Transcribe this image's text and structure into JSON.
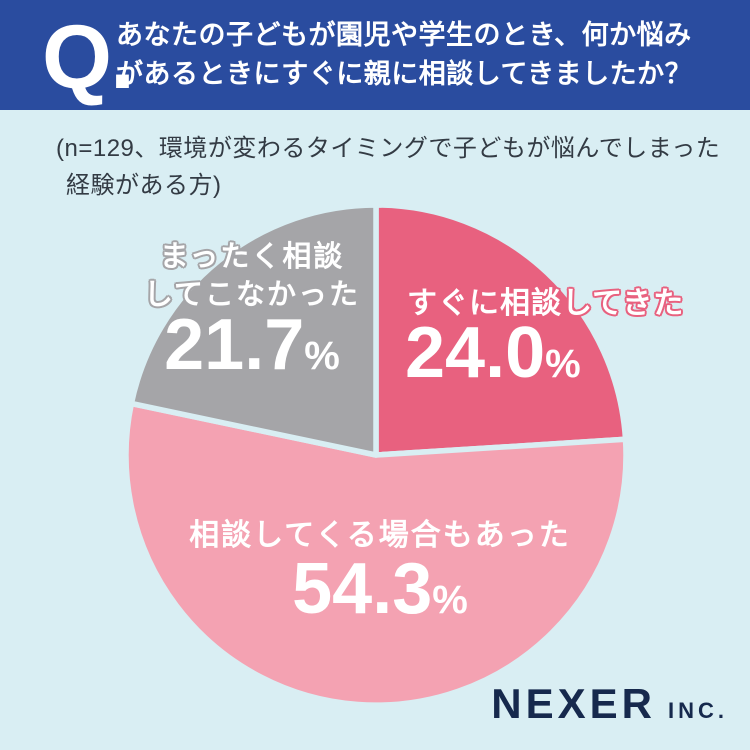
{
  "header": {
    "q_mark": "Q.",
    "question_lines": [
      "あなたの子どもが園児や学生のとき、何か悩み",
      "があるときにすぐに親に相談してきましたか？"
    ]
  },
  "note": {
    "lines": [
      "(n=129、環境が変わるタイミングで子どもが悩んでしまった",
      "経験がある方)"
    ]
  },
  "chart_data": {
    "type": "pie",
    "title": "あなたの子どもが園児や学生のとき、何か悩みがあるときにすぐに親に相談してきましたか？",
    "sample_note": "n=129、環境が変わるタイミングで子どもが悩んでしまった経験がある方",
    "start_angle": "top",
    "direction": "clockwise",
    "unit": "%",
    "slices": [
      {
        "label": "すぐに相談してきた",
        "value": 24.0,
        "display": "24.0",
        "color": "#e8617f"
      },
      {
        "label": "相談してくる場合もあった",
        "value": 54.3,
        "display": "54.3",
        "color": "#f4a2b2"
      },
      {
        "label": "まったく相談してこなかった",
        "value": 21.7,
        "display": "21.7",
        "color": "#a5a5a8",
        "label_lines": [
          "まったく相談",
          "してこなかった"
        ]
      }
    ]
  },
  "footer": {
    "brand": "NEXER",
    "suffix": "INC."
  },
  "colors": {
    "background": "#d9eef3",
    "header_blue": "#2a4c9f",
    "brand_navy": "#16294d",
    "note_text": "#333b44"
  }
}
